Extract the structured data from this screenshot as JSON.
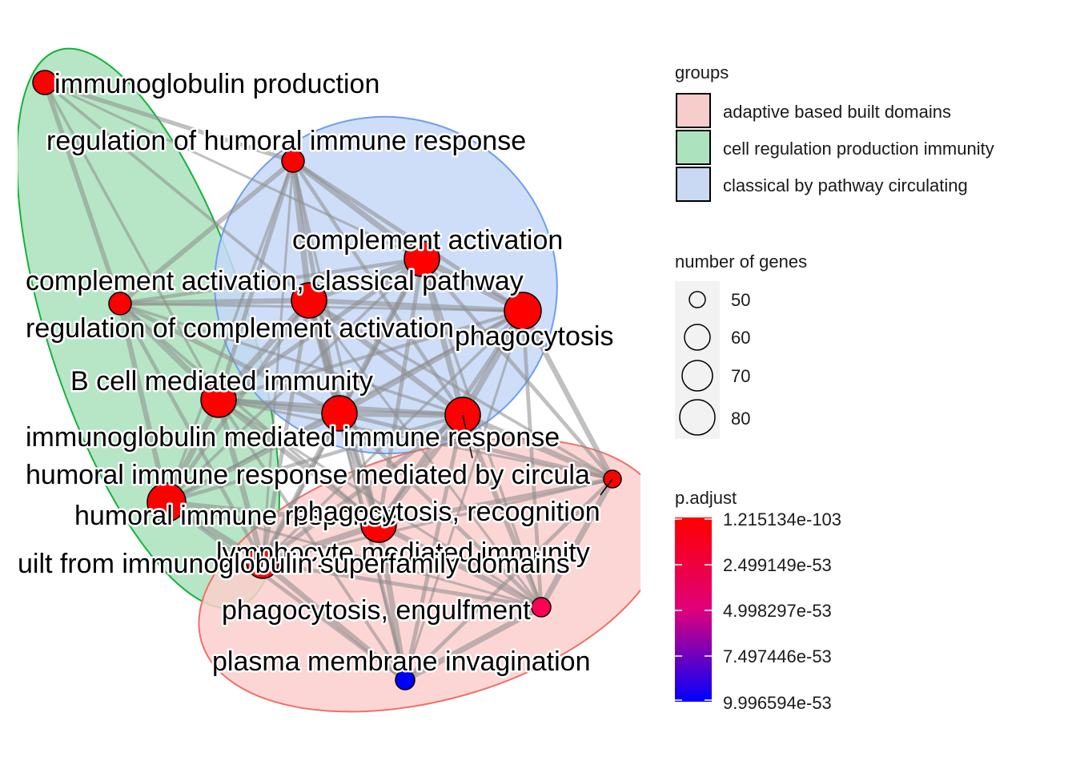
{
  "network": {
    "groups": [
      {
        "name": "adaptive based built domains",
        "fill": "#f8c6c3",
        "stroke": "#f07068"
      },
      {
        "name": "cell regulation production immunity",
        "fill": "#a9e2bb",
        "stroke": "#14b33a"
      },
      {
        "name": "classical by pathway circulating",
        "fill": "#c6d8f7",
        "stroke": "#6e9ef0"
      }
    ],
    "nodes": [
      {
        "label": "immunoglobulin production",
        "group": "cell regulation production immunity",
        "genes": 52,
        "color": "#ff0000"
      },
      {
        "label": "regulation of humoral immune response",
        "group": "classical by pathway circulating",
        "genes": 50,
        "color": "#ff0000"
      },
      {
        "label": "complement activation",
        "group": "classical by pathway circulating",
        "genes": 70,
        "color": "#ff0000"
      },
      {
        "label": "complement activation, classical pathway",
        "group": "classical by pathway circulating",
        "genes": 72,
        "color": "#ff0000"
      },
      {
        "label": "phagocytosis",
        "group": "classical by pathway circulating",
        "genes": 76,
        "color": "#ff0000"
      },
      {
        "label": "regulation of complement activation",
        "group": "cell regulation production immunity",
        "genes": 50,
        "color": "#ff0000"
      },
      {
        "label": "B cell mediated immunity",
        "group": "cell regulation production immunity",
        "genes": 74,
        "color": "#ff0000"
      },
      {
        "label": "immunoglobulin mediated immune response",
        "group": "classical by pathway circulating",
        "genes": 73,
        "color": "#ff0000"
      },
      {
        "label": "humoral immune response mediated by circulating immunoglobulin",
        "group": "classical by pathway circulating",
        "genes": 70,
        "color": "#ff0000"
      },
      {
        "label": "humoral immune response",
        "group": "cell regulation production immunity",
        "genes": 78,
        "color": "#ff0000"
      },
      {
        "label": "phagocytosis, recognition",
        "group": "adaptive based built domains",
        "genes": 48,
        "color": "#ff0000"
      },
      {
        "label": "lymphocyte mediated immunity",
        "group": "adaptive based built domains",
        "genes": 74,
        "color": "#ff0000"
      },
      {
        "label": "adaptive immune response based on somatic recombination of immune receptors built from immunoglobulin superfamily domains",
        "group": "adaptive based built domains",
        "genes": 68,
        "color": "#ff0000"
      },
      {
        "label": "phagocytosis, engulfment",
        "group": "adaptive based built domains",
        "genes": 50,
        "color": "#ff0055"
      },
      {
        "label": "plasma membrane invagination",
        "group": "adaptive based built domains",
        "genes": 50,
        "color": "#0000ff"
      }
    ],
    "visible_labels": [
      "immunoglobulin production",
      "regulation of humoral immune response",
      "complement activation",
      "complement activation, classical pathway",
      "phagocytosis",
      "regulation of complement activation",
      "B cell mediated immunity",
      "immunoglobulin mediated immune response",
      "humoral immune response mediated by circula",
      "humoral immune response",
      "phagocytosis, recognition",
      "lymphocyte mediated immunity",
      "uilt from immunoglobulin superfamily domains",
      "phagocytosis, engulfment",
      "plasma membrane invagination"
    ]
  },
  "legend": {
    "groups_title": "groups",
    "groups": [
      {
        "label": "adaptive based built domains",
        "fill": "#f6cdcb"
      },
      {
        "label": "cell regulation production immunity",
        "fill": "#ade2be"
      },
      {
        "label": "classical by pathway circulating",
        "fill": "#c9d9f3"
      }
    ],
    "size_title": "number of genes",
    "size_breaks": [
      "50",
      "60",
      "70",
      "80"
    ],
    "color_title": "p.adjust",
    "color_breaks": [
      "1.215134e-103",
      "2.499149e-53",
      "4.998297e-53",
      "7.497446e-53",
      "9.996594e-53"
    ],
    "color_low": "#ff0000",
    "color_high": "#0000ff"
  }
}
